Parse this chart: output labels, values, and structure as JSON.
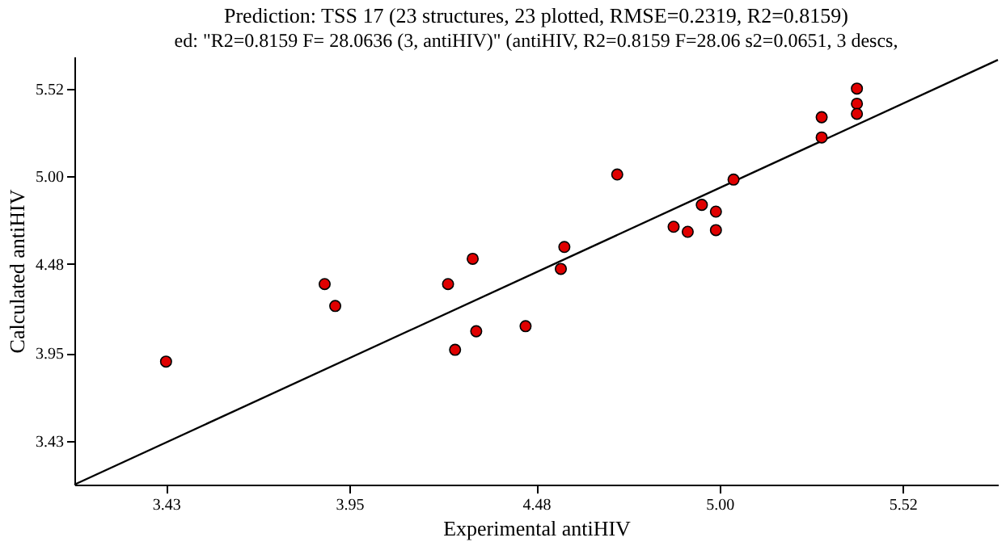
{
  "chart_data": {
    "type": "scatter",
    "title": "Prediction:  TSS 17 (23 structures, 23 plotted, RMSE=0.2319, R2=0.8159)",
    "subtitle": "ed: \"R2=0.8159  F= 28.0636 (3, antiHIV)\" (antiHIV, R2=0.8159  F=28.06  s2=0.0651, 3 descs,",
    "xlabel": "Experimental antiHIV",
    "ylabel": "Calculated antiHIV",
    "xlim": [
      3.17,
      5.79
    ],
    "ylim": [
      3.17,
      5.71
    ],
    "xticks": [
      3.43,
      3.95,
      4.48,
      {
        "value": 5.0,
        "label": "5.00"
      },
      5.52
    ],
    "yticks": [
      3.43,
      3.95,
      4.48,
      {
        "value": 5.0,
        "label": "5.00"
      },
      5.52
    ],
    "grid": false,
    "series": [
      {
        "color": "#e00000",
        "marker": "circle",
        "x": [
          3.43,
          3.88,
          3.91,
          4.23,
          4.3,
          4.25,
          4.31,
          4.45,
          4.55,
          4.56,
          4.71,
          4.87,
          4.91,
          4.95,
          4.99,
          4.99,
          5.04,
          5.29,
          5.29,
          5.39,
          5.39,
          5.39
        ],
        "values": [
          3.9,
          4.36,
          4.23,
          4.36,
          4.51,
          3.97,
          4.08,
          4.11,
          4.45,
          4.58,
          5.01,
          4.7,
          4.67,
          4.83,
          4.79,
          4.68,
          4.98,
          5.35,
          5.23,
          5.52,
          5.43,
          5.37
        ]
      },
      {
        "type": "line",
        "color": "#000000",
        "line_style": "solid",
        "x": [
          3.17,
          5.79
        ],
        "values": [
          3.17,
          5.69
        ]
      }
    ]
  }
}
